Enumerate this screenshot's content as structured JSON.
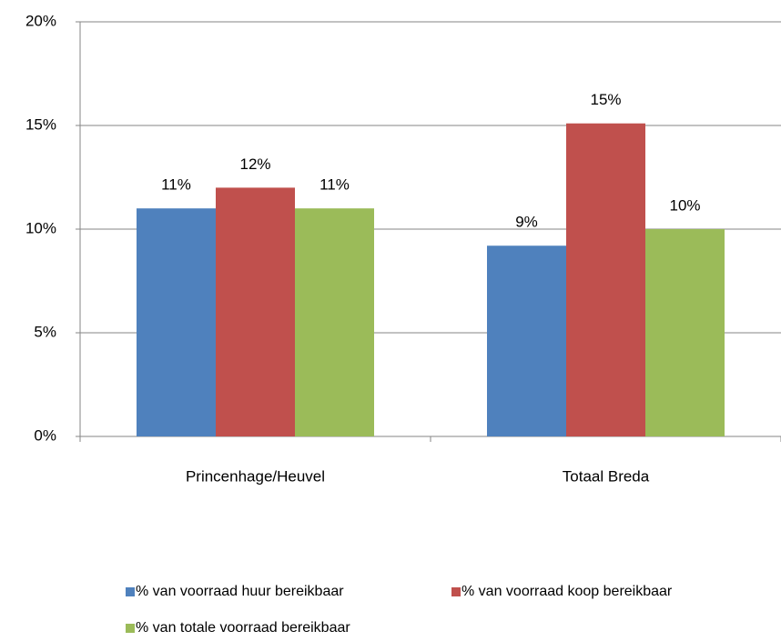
{
  "chart_data": {
    "type": "bar",
    "categories": [
      "Princenhage/Heuvel",
      "Totaal Breda"
    ],
    "series": [
      {
        "name": "% van voorraad huur bereikbaar",
        "color": "#4f81bd",
        "values": [
          11,
          9.2
        ],
        "value_labels": [
          "11%",
          "9%"
        ]
      },
      {
        "name": "% van voorraad koop bereikbaar",
        "color": "#c0504d",
        "values": [
          12,
          15.1
        ],
        "value_labels": [
          "12%",
          "15%"
        ]
      },
      {
        "name": "% van totale voorraad bereikbaar",
        "color": "#9bbb59",
        "values": [
          11,
          10
        ],
        "value_labels": [
          "11%",
          "10%"
        ]
      }
    ],
    "ylim": [
      0,
      20
    ],
    "yticks": [
      {
        "value": 0,
        "label": "0%"
      },
      {
        "value": 5,
        "label": "5%"
      },
      {
        "value": 10,
        "label": "10%"
      },
      {
        "value": 15,
        "label": "15%"
      },
      {
        "value": 20,
        "label": "20%"
      }
    ],
    "grid": true
  }
}
